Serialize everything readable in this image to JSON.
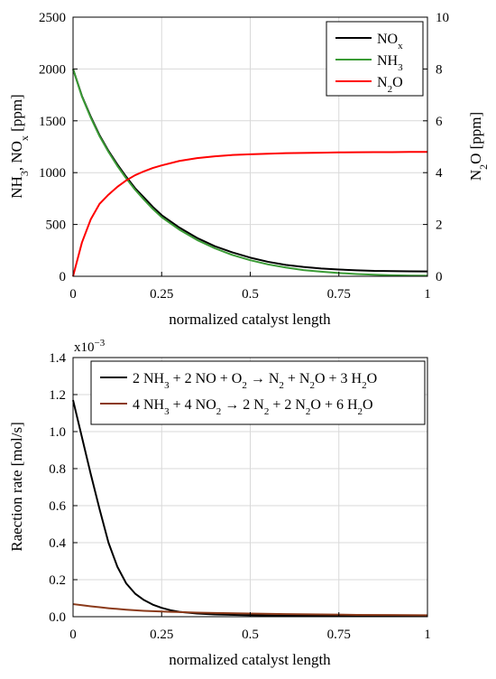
{
  "chart_data": [
    {
      "type": "line",
      "xlabel": "normalized catalyst length",
      "ylabel": "NH3, NOx [ppm]",
      "y2label": "N2O [ppm]",
      "xlim": [
        0,
        1
      ],
      "ylim": [
        0,
        2500
      ],
      "y2lim": [
        0,
        10
      ],
      "xticks": [
        "0",
        "0.25",
        "0.5",
        "0.75",
        "1"
      ],
      "yticks": [
        "0",
        "500",
        "1000",
        "1500",
        "2000",
        "2500"
      ],
      "y2ticks": [
        "0",
        "2",
        "4",
        "6",
        "8",
        "10"
      ],
      "grid": true,
      "legend_position": "top-right",
      "x": [
        0,
        0.025,
        0.05,
        0.075,
        0.1,
        0.125,
        0.15,
        0.175,
        0.2,
        0.225,
        0.25,
        0.3,
        0.35,
        0.4,
        0.45,
        0.5,
        0.55,
        0.6,
        0.65,
        0.7,
        0.75,
        0.8,
        0.85,
        0.9,
        0.95,
        1.0
      ],
      "series": [
        {
          "name": "NOx",
          "color": "#000000",
          "axis": "left",
          "values": [
            2000,
            1740,
            1540,
            1360,
            1210,
            1080,
            960,
            850,
            760,
            670,
            590,
            470,
            370,
            290,
            230,
            180,
            140,
            110,
            90,
            75,
            65,
            58,
            52,
            50,
            48,
            47
          ]
        },
        {
          "name": "NH3",
          "color": "#3a9b35",
          "axis": "left",
          "values": [
            2000,
            1735,
            1530,
            1350,
            1200,
            1065,
            945,
            835,
            740,
            650,
            570,
            450,
            350,
            270,
            205,
            155,
            115,
            85,
            60,
            45,
            32,
            22,
            15,
            10,
            7,
            5
          ]
        },
        {
          "name": "N2O",
          "color": "#ff0000",
          "axis": "right",
          "values": [
            0,
            1.3,
            2.2,
            2.8,
            3.15,
            3.45,
            3.7,
            3.9,
            4.05,
            4.18,
            4.28,
            4.45,
            4.56,
            4.63,
            4.68,
            4.71,
            4.73,
            4.75,
            4.76,
            4.77,
            4.78,
            4.785,
            4.79,
            4.79,
            4.8,
            4.8
          ]
        }
      ],
      "legend": {
        "nox": {
          "base": "NO",
          "sub": "x"
        },
        "nh3": {
          "base": "NH",
          "sub": "3"
        },
        "n2o": {
          "base": "N",
          "sub": "2",
          "tail": "O"
        }
      },
      "ylabel_parts": {
        "a": "NH",
        "a_sub": "3",
        "b": ", NO",
        "b_sub": "x",
        "c": " [ppm]"
      },
      "y2label_parts": {
        "a": "N",
        "a_sub": "2",
        "b": "O [ppm]"
      }
    },
    {
      "type": "line",
      "xlabel": "normalized catalyst length",
      "ylabel": "Raection rate [mol/s]",
      "exponent_label": {
        "base": "x10",
        "sup": "−3"
      },
      "xlim": [
        0,
        1
      ],
      "ylim": [
        0,
        1.4
      ],
      "xticks": [
        "0",
        "0.25",
        "0.5",
        "0.75",
        "1"
      ],
      "yticks": [
        "0.0",
        "0.2",
        "0.4",
        "0.6",
        "0.8",
        "1.0",
        "1.2",
        "1.4"
      ],
      "grid": true,
      "legend_position": "top-right",
      "x": [
        0,
        0.025,
        0.05,
        0.075,
        0.1,
        0.125,
        0.15,
        0.175,
        0.2,
        0.225,
        0.25,
        0.275,
        0.3,
        0.35,
        0.4,
        0.5,
        0.6,
        0.7,
        0.8,
        0.9,
        1.0
      ],
      "series": [
        {
          "name": "2 NH3 + 2 NO + O2 → N2 + N2O + 3 H2O",
          "color": "#000000",
          "values": [
            1.17,
            0.97,
            0.77,
            0.58,
            0.4,
            0.27,
            0.18,
            0.125,
            0.09,
            0.065,
            0.048,
            0.035,
            0.026,
            0.017,
            0.012,
            0.008,
            0.006,
            0.005,
            0.004,
            0.004,
            0.003
          ]
        },
        {
          "name": "4 NH3 + 4 NO2 → 2 N2 + 2 N2O + 6 H2O",
          "color": "#8b3a1a",
          "values": [
            0.068,
            0.062,
            0.056,
            0.051,
            0.046,
            0.042,
            0.038,
            0.035,
            0.032,
            0.03,
            0.028,
            0.026,
            0.025,
            0.022,
            0.02,
            0.017,
            0.014,
            0.012,
            0.01,
            0.009,
            0.008
          ]
        }
      ],
      "legend": {
        "r1": [
          [
            "2 NH",
            ""
          ],
          [
            "3",
            "sub"
          ],
          [
            " + 2 NO + O",
            ""
          ],
          [
            "2",
            "sub"
          ],
          [
            " → N",
            ""
          ],
          [
            "2",
            "sub"
          ],
          [
            " + N",
            ""
          ],
          [
            "2",
            "sub"
          ],
          [
            "O + 3 H",
            ""
          ],
          [
            "2",
            "sub"
          ],
          [
            "O",
            ""
          ]
        ],
        "r2": [
          [
            "4 NH",
            ""
          ],
          [
            "3",
            "sub"
          ],
          [
            " + 4 NO",
            ""
          ],
          [
            "2",
            "sub"
          ],
          [
            " → 2 N",
            ""
          ],
          [
            "2",
            "sub"
          ],
          [
            " + 2 N",
            ""
          ],
          [
            "2",
            "sub"
          ],
          [
            "O + 6 H",
            ""
          ],
          [
            "2",
            "sub"
          ],
          [
            "O",
            ""
          ]
        ]
      }
    }
  ]
}
